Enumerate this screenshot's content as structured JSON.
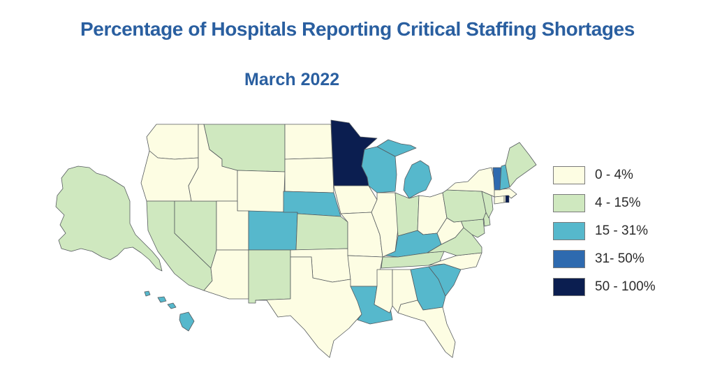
{
  "title": "Percentage of Hospitals Reporting Critical Staffing Shortages",
  "subtitle": "March 2022",
  "colors": {
    "b0": "#fdfde3",
    "b1": "#cfe8bf",
    "b2": "#56b8cc",
    "b3": "#2e6aaf",
    "b4": "#0b1e50",
    "outline": "#555a5e",
    "title": "#2a5fa0"
  },
  "legend": [
    {
      "label": "0 - 4%",
      "bin": "b0"
    },
    {
      "label": "4 - 15%",
      "bin": "b1"
    },
    {
      "label": "15 - 31%",
      "bin": "b2"
    },
    {
      "label": "31- 50%",
      "bin": "b3"
    },
    {
      "label": "50 - 100%",
      "bin": "b4"
    }
  ],
  "states": {
    "WA": "b0",
    "OR": "b0",
    "CA": "b1",
    "NV": "b1",
    "ID": "b0",
    "MT": "b1",
    "WY": "b0",
    "UT": "b0",
    "AZ": "b0",
    "CO": "b2",
    "NM": "b1",
    "ND": "b0",
    "SD": "b0",
    "NE": "b2",
    "KS": "b1",
    "OK": "b0",
    "TX": "b0",
    "MN": "b4",
    "IA": "b0",
    "MO": "b0",
    "AR": "b0",
    "LA": "b2",
    "WI": "b2",
    "IL": "b0",
    "MI": "b2",
    "IN": "b1",
    "OH": "b0",
    "KY": "b2",
    "TN": "b1",
    "MS": "b0",
    "AL": "b0",
    "GA": "b2",
    "FL": "b0",
    "SC": "b2",
    "NC": "b0",
    "VA": "b1",
    "WV": "b0",
    "PA": "b1",
    "NY": "b0",
    "NJ": "b1",
    "DE": "b1",
    "MD": "b1",
    "CT": "b0",
    "RI": "b0",
    "MA": "b0",
    "VT": "b3",
    "NH": "b2",
    "ME": "b1",
    "AK": "b1",
    "HI": "b2"
  }
}
